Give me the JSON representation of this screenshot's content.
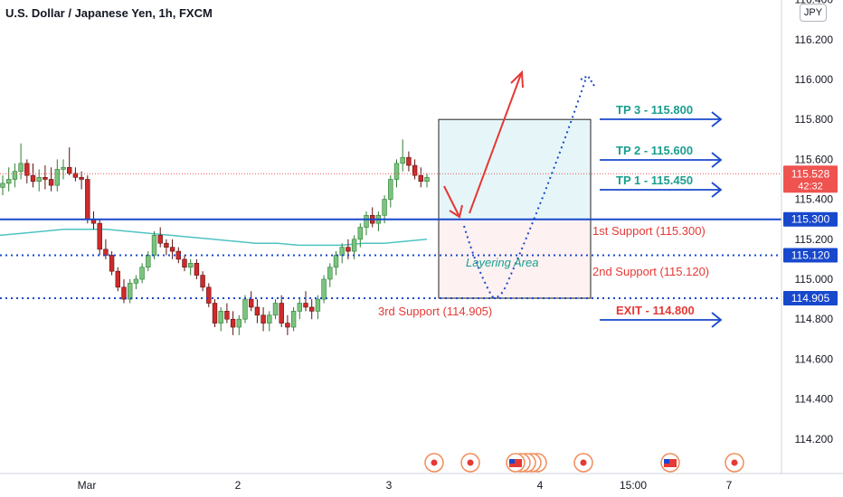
{
  "header": {
    "title": "U.S. Dollar / Japanese Yen, 1h, FXCM"
  },
  "axis": {
    "currency": "JPY"
  },
  "colors": {
    "up": "#26a69a",
    "up_fill": "#7bc47f",
    "down": "#ef5350",
    "down_fill": "#cf2a2a",
    "blue": "#1848cc",
    "teal": "#1a9e8f",
    "red": "#e53935",
    "ma": "#4fc3c3",
    "price_line": "#ef5350"
  },
  "chart_data": {
    "type": "candlestick",
    "title": "U.S. Dollar / Japanese Yen, 1h, FXCM",
    "ylim": [
      114.05,
      116.43
    ],
    "y_ticks": [
      "116.400",
      "116.200",
      "116.000",
      "115.800",
      "115.600",
      "115.400",
      "115.200",
      "115.000",
      "114.800",
      "114.600",
      "114.400",
      "114.200"
    ],
    "x_ticks": [
      "Mar",
      "2",
      "3",
      "4",
      "15:00",
      "7"
    ],
    "grid": false,
    "ohlc": [
      [
        115.46,
        115.52,
        115.42,
        115.48
      ],
      [
        115.48,
        115.56,
        115.44,
        115.5
      ],
      [
        115.5,
        115.58,
        115.46,
        115.54
      ],
      [
        115.54,
        115.68,
        115.5,
        115.58
      ],
      [
        115.58,
        115.6,
        115.48,
        115.52
      ],
      [
        115.52,
        115.58,
        115.46,
        115.49
      ],
      [
        115.49,
        115.55,
        115.44,
        115.51
      ],
      [
        115.51,
        115.57,
        115.45,
        115.5
      ],
      [
        115.5,
        115.56,
        115.44,
        115.47
      ],
      [
        115.47,
        115.6,
        115.44,
        115.55
      ],
      [
        115.55,
        115.6,
        115.5,
        115.56
      ],
      [
        115.56,
        115.66,
        115.52,
        115.53
      ],
      [
        115.53,
        115.56,
        115.49,
        115.51
      ],
      [
        115.51,
        115.54,
        115.45,
        115.5
      ],
      [
        115.5,
        115.52,
        115.28,
        115.3
      ],
      [
        115.3,
        115.34,
        115.25,
        115.28
      ],
      [
        115.28,
        115.3,
        115.12,
        115.15
      ],
      [
        115.15,
        115.2,
        115.1,
        115.12
      ],
      [
        115.12,
        115.14,
        115.02,
        115.04
      ],
      [
        115.04,
        115.06,
        114.94,
        114.96
      ],
      [
        114.96,
        115.0,
        114.88,
        114.9
      ],
      [
        114.9,
        115.0,
        114.88,
        114.98
      ],
      [
        114.98,
        115.02,
        114.95,
        115.0
      ],
      [
        115.0,
        115.08,
        114.98,
        115.06
      ],
      [
        115.06,
        115.14,
        115.04,
        115.12
      ],
      [
        115.12,
        115.24,
        115.1,
        115.22
      ],
      [
        115.22,
        115.26,
        115.16,
        115.18
      ],
      [
        115.18,
        115.2,
        115.12,
        115.16
      ],
      [
        115.16,
        115.2,
        115.1,
        115.14
      ],
      [
        115.14,
        115.16,
        115.08,
        115.1
      ],
      [
        115.1,
        115.12,
        115.04,
        115.06
      ],
      [
        115.06,
        115.1,
        115.02,
        115.08
      ],
      [
        115.08,
        115.1,
        115.0,
        115.02
      ],
      [
        115.02,
        115.04,
        114.94,
        114.96
      ],
      [
        114.96,
        114.98,
        114.86,
        114.88
      ],
      [
        114.88,
        114.9,
        114.76,
        114.78
      ],
      [
        114.78,
        114.86,
        114.74,
        114.84
      ],
      [
        114.84,
        114.88,
        114.78,
        114.8
      ],
      [
        114.8,
        114.84,
        114.72,
        114.76
      ],
      [
        114.76,
        114.82,
        114.72,
        114.8
      ],
      [
        114.8,
        114.92,
        114.78,
        114.9
      ],
      [
        114.9,
        114.94,
        114.84,
        114.86
      ],
      [
        114.86,
        114.9,
        114.78,
        114.82
      ],
      [
        114.82,
        114.86,
        114.74,
        114.78
      ],
      [
        114.78,
        114.84,
        114.74,
        114.82
      ],
      [
        114.82,
        114.9,
        114.8,
        114.88
      ],
      [
        114.88,
        114.92,
        114.76,
        114.78
      ],
      [
        114.78,
        114.82,
        114.72,
        114.76
      ],
      [
        114.76,
        114.86,
        114.74,
        114.84
      ],
      [
        114.84,
        114.9,
        114.8,
        114.88
      ],
      [
        114.88,
        114.94,
        114.84,
        114.86
      ],
      [
        114.86,
        114.9,
        114.8,
        114.84
      ],
      [
        114.84,
        114.92,
        114.8,
        114.9
      ],
      [
        114.9,
        115.02,
        114.88,
        115.0
      ],
      [
        115.0,
        115.08,
        114.96,
        115.06
      ],
      [
        115.06,
        115.14,
        115.02,
        115.12
      ],
      [
        115.12,
        115.18,
        115.08,
        115.16
      ],
      [
        115.16,
        115.2,
        115.1,
        115.14
      ],
      [
        115.14,
        115.22,
        115.1,
        115.2
      ],
      [
        115.2,
        115.28,
        115.16,
        115.26
      ],
      [
        115.26,
        115.34,
        115.22,
        115.32
      ],
      [
        115.32,
        115.36,
        115.26,
        115.28
      ],
      [
        115.28,
        115.34,
        115.24,
        115.32
      ],
      [
        115.32,
        115.42,
        115.28,
        115.4
      ],
      [
        115.4,
        115.52,
        115.36,
        115.5
      ],
      [
        115.5,
        115.6,
        115.46,
        115.58
      ],
      [
        115.58,
        115.7,
        115.54,
        115.61
      ],
      [
        115.61,
        115.64,
        115.54,
        115.57
      ],
      [
        115.57,
        115.6,
        115.5,
        115.52
      ],
      [
        115.52,
        115.56,
        115.46,
        115.49
      ],
      [
        115.49,
        115.53,
        115.46,
        115.51
      ]
    ],
    "moving_average": [
      115.22,
      115.23,
      115.24,
      115.25,
      115.25,
      115.25,
      115.24,
      115.23,
      115.22,
      115.21,
      115.2,
      115.19,
      115.18,
      115.18,
      115.17,
      115.17,
      115.17,
      115.18,
      115.18,
      115.19,
      115.2
    ],
    "last_price": "115.528",
    "countdown": "42:32",
    "levels": [
      {
        "price": 115.3,
        "label": "115.300",
        "style": "solid"
      },
      {
        "price": 115.12,
        "label": "115.120",
        "style": "dotted"
      },
      {
        "price": 114.905,
        "label": "114.905",
        "style": "dotted"
      }
    ],
    "zones": [
      {
        "name": "upper",
        "top": 115.8,
        "bottom": 115.3
      },
      {
        "name": "lower",
        "top": 115.3,
        "bottom": 114.905
      }
    ],
    "zone_label": "Layering Area",
    "annotations": {
      "tp3": "TP 3 - 115.800",
      "tp2": "TP 2 - 115.600",
      "tp1": "TP 1 - 115.450",
      "exit": "EXIT - 114.800",
      "s1": "1st Support (115.300)",
      "s2": "2nd Support (115.120)",
      "s3": "3rd Support (114.905)"
    }
  }
}
